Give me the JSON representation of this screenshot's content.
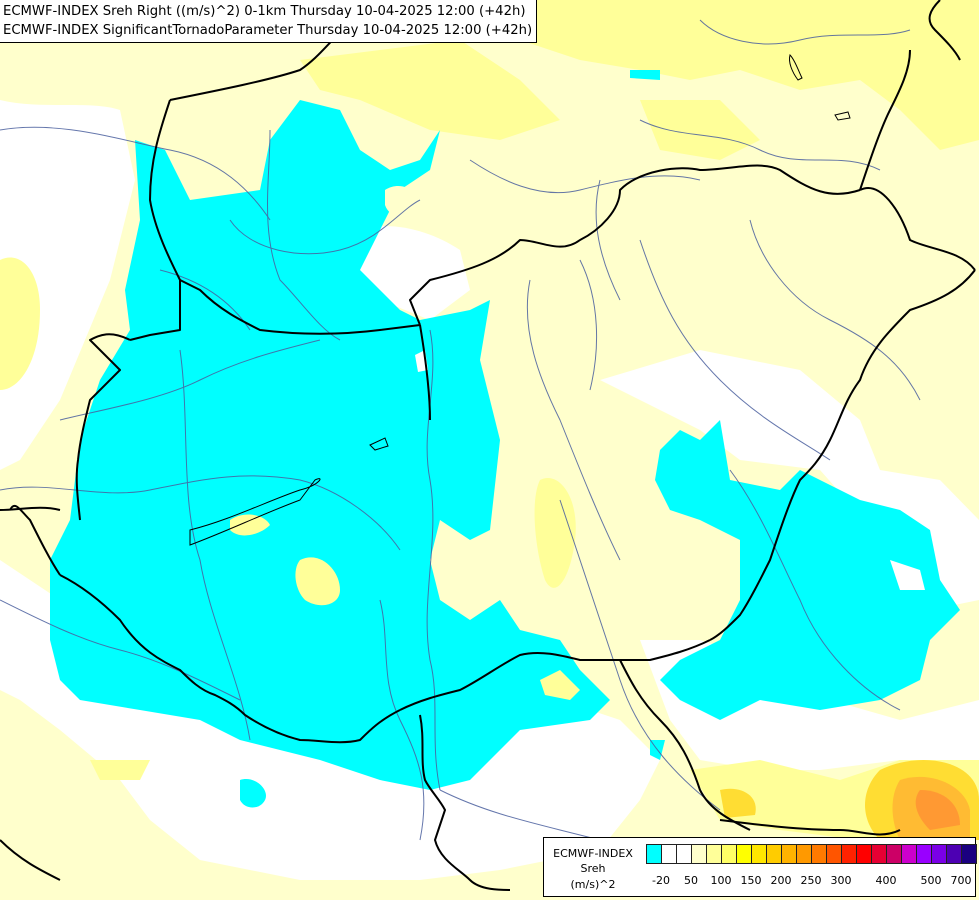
{
  "title": {
    "line1": "ECMWF-INDEX Sreh Right ((m/s)^2) 0-1km Thursday 10-04-2025 12:00 (+42h)",
    "line2": "ECMWF-INDEX SignificantTornadoParameter Thursday 10-04-2025 12:00 (+42h)"
  },
  "legend": {
    "source": "ECMWF-INDEX",
    "variable": "Sreh",
    "unit": "(m/s)^2",
    "ticks": [
      "-20",
      "50",
      "100",
      "150",
      "200",
      "250",
      "300",
      "400",
      "500",
      "700"
    ],
    "colors": [
      "#00ffff",
      "#ffffff",
      "#ffffff",
      "#ffffcc",
      "#ffff99",
      "#ffff66",
      "#ffff00",
      "#ffe600",
      "#ffcc00",
      "#ffb300",
      "#ff9900",
      "#ff7a00",
      "#ff5500",
      "#ff2200",
      "#ff0000",
      "#e60033",
      "#cc0066",
      "#cc00cc",
      "#9900ff",
      "#7a00e6",
      "#4d00b3",
      "#1a0080"
    ]
  },
  "colors": {
    "positive_low": "#ffffcc",
    "positive_mid": "#ffff99",
    "negative": "#00ffff",
    "hot_spot": "#ff9933",
    "borders": "#000000",
    "rivers": "#4a5f9e"
  }
}
